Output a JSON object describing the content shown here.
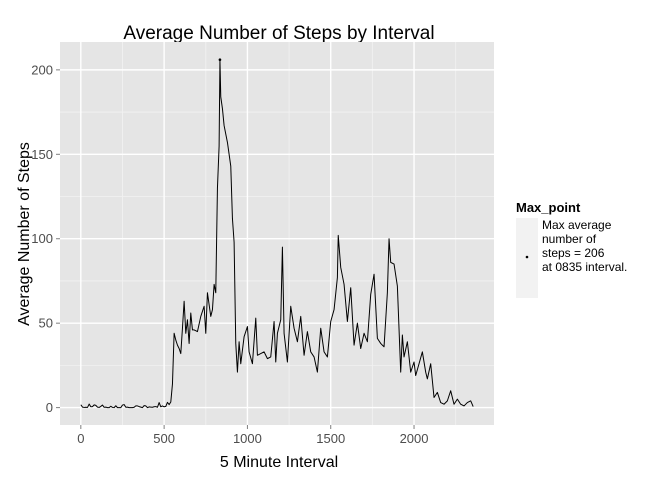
{
  "chart_data": {
    "type": "line",
    "title": "Average Number of Steps by Interval",
    "xlabel": "5 Minute Interval",
    "ylabel": "Average Number of Steps",
    "xlim": [
      -125,
      2480
    ],
    "ylim": [
      -10.3,
      216.5
    ],
    "x_ticks": [
      0,
      500,
      1000,
      1500,
      2000
    ],
    "y_ticks": [
      0,
      50,
      100,
      150,
      200
    ],
    "grid": true,
    "legend_position": "right",
    "legend": {
      "title": "Max_point",
      "entry_lines": [
        "Max average",
        "number of",
        "steps = 206",
        "at 0835 interval."
      ]
    },
    "series": [
      {
        "x": [
          0,
          10,
          20,
          30,
          40,
          50,
          60,
          70,
          80,
          90,
          100,
          110,
          120,
          130,
          140,
          150,
          160,
          170,
          180,
          190,
          200,
          210,
          220,
          230,
          240,
          250,
          260,
          270,
          280,
          290,
          300,
          310,
          320,
          330,
          340,
          350,
          360,
          370,
          380,
          390,
          400,
          410,
          420,
          430,
          440,
          450,
          460,
          470,
          480,
          490,
          500,
          510,
          520,
          530,
          540,
          550,
          560,
          570,
          580,
          590,
          600,
          610,
          620,
          630,
          640,
          650,
          660,
          670,
          680,
          700,
          720,
          740,
          750,
          760,
          780,
          790,
          800,
          810,
          820,
          830,
          835,
          840,
          850,
          860,
          880,
          900,
          910,
          920,
          930,
          940,
          950,
          960,
          980,
          1000,
          1010,
          1030,
          1050,
          1060,
          1080,
          1100,
          1120,
          1140,
          1160,
          1170,
          1180,
          1200,
          1210,
          1220,
          1240,
          1260,
          1280,
          1300,
          1320,
          1340,
          1360,
          1380,
          1400,
          1420,
          1440,
          1460,
          1480,
          1500,
          1520,
          1540,
          1545,
          1560,
          1580,
          1600,
          1620,
          1640,
          1660,
          1680,
          1700,
          1720,
          1740,
          1760,
          1780,
          1800,
          1820,
          1840,
          1850,
          1860,
          1880,
          1900,
          1920,
          1930,
          1940,
          1960,
          1980,
          2000,
          2010,
          2030,
          2050,
          2070,
          2080,
          2100,
          2120,
          2140,
          2160,
          2180,
          2200,
          2220,
          2240,
          2260,
          2280,
          2300,
          2320,
          2340,
          2355
        ],
        "y": [
          1.7,
          0.3,
          0.1,
          0.2,
          0.1,
          2.1,
          0.5,
          0.6,
          1.6,
          1.3,
          0.3,
          0.1,
          0.7,
          1.5,
          0.2,
          0.3,
          0.0,
          0.0,
          0.8,
          0.1,
          0.0,
          1.1,
          0.0,
          0.0,
          0.0,
          1.5,
          1.8,
          0.2,
          0.3,
          0.0,
          0.0,
          0.0,
          0.2,
          1.0,
          1.0,
          0.6,
          0.3,
          0.0,
          1.2,
          1.0,
          0.0,
          0.4,
          0.3,
          0.2,
          0.5,
          0.6,
          0.2,
          3.0,
          0.5,
          1.0,
          0.5,
          0.7,
          3.1,
          1.8,
          3.3,
          14.0,
          44.0,
          40.0,
          37.0,
          35.0,
          32.0,
          47.0,
          63.0,
          44.0,
          52.0,
          38.0,
          56.0,
          46.0,
          46.0,
          45.0,
          54.0,
          60.0,
          44.0,
          68.0,
          54.0,
          58.0,
          73.0,
          68.0,
          130.0,
          155.0,
          206.0,
          184.0,
          177.0,
          167.0,
          157.0,
          143.0,
          112.0,
          98.0,
          38.0,
          21.0,
          39.0,
          26.0,
          42.0,
          48.0,
          33.0,
          26.0,
          53.0,
          31.0,
          32.0,
          33.0,
          29.0,
          30.0,
          51.0,
          27.0,
          44.0,
          52.0,
          95.0,
          44.0,
          27.0,
          60.0,
          47.0,
          39.0,
          54.0,
          31.0,
          45.0,
          33.0,
          30.0,
          21.0,
          47.0,
          33.0,
          30.0,
          51.0,
          58.0,
          77.0,
          102.0,
          83.0,
          73.0,
          51.0,
          71.0,
          37.0,
          50.0,
          35.0,
          44.0,
          39.0,
          67.0,
          79.0,
          41.0,
          38.0,
          36.0,
          68.0,
          100.0,
          86.0,
          85.0,
          72.0,
          21.0,
          43.0,
          30.0,
          39.0,
          21.0,
          27.0,
          19.0,
          26.0,
          33.0,
          21.0,
          17.0,
          26.0,
          6.0,
          9.0,
          3.0,
          2.0,
          4.0,
          10.0,
          2.0,
          5.0,
          2.0,
          1.0,
          3.0,
          4.0,
          0.6
        ]
      }
    ]
  }
}
